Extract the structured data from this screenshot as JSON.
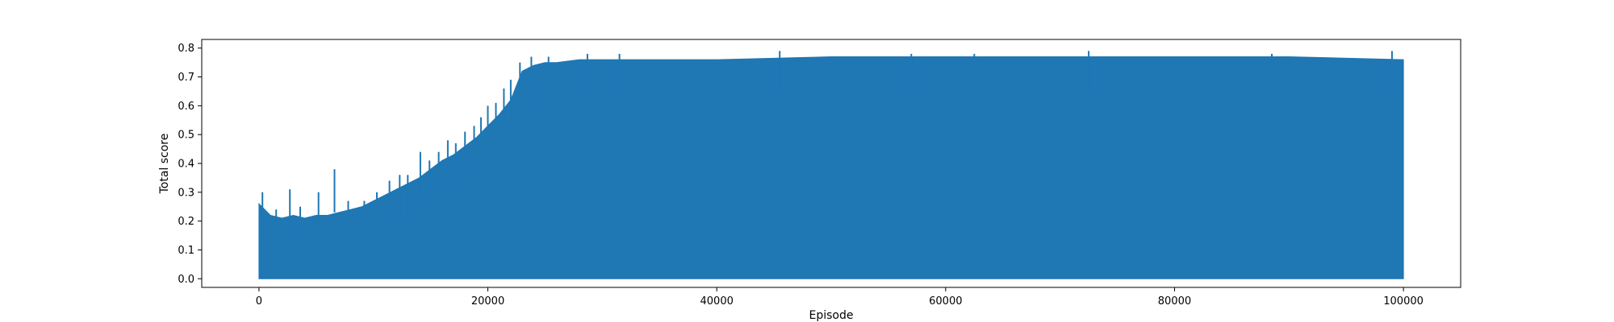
{
  "chart_data": {
    "type": "line",
    "xlabel": "Episode",
    "ylabel": "Total score",
    "xlim": [
      -5000,
      105000
    ],
    "ylim": [
      -0.03,
      0.83
    ],
    "x_ticks": [
      0,
      20000,
      40000,
      60000,
      80000,
      100000
    ],
    "x_tick_labels": [
      "0",
      "20000",
      "40000",
      "60000",
      "80000",
      "100000"
    ],
    "y_ticks": [
      0.0,
      0.1,
      0.2,
      0.3,
      0.4,
      0.5,
      0.6,
      0.7,
      0.8
    ],
    "y_tick_labels": [
      "0.0",
      "0.1",
      "0.2",
      "0.3",
      "0.4",
      "0.5",
      "0.6",
      "0.7",
      "0.8"
    ],
    "grid": false,
    "series": [
      {
        "color": "#1f77b4",
        "x": [
          0,
          1000,
          2000,
          3000,
          4000,
          5000,
          6000,
          7000,
          8000,
          9000,
          10000,
          11000,
          12000,
          13000,
          14000,
          15000,
          16000,
          17000,
          18000,
          19000,
          20000,
          21000,
          22000,
          23000,
          24000,
          25000,
          26000,
          28000,
          30000,
          35000,
          40000,
          50000,
          60000,
          70000,
          80000,
          90000,
          100000
        ],
        "upper": [
          0.26,
          0.22,
          0.21,
          0.22,
          0.21,
          0.22,
          0.22,
          0.23,
          0.24,
          0.25,
          0.27,
          0.29,
          0.31,
          0.33,
          0.35,
          0.38,
          0.41,
          0.43,
          0.46,
          0.49,
          0.53,
          0.57,
          0.62,
          0.72,
          0.74,
          0.75,
          0.75,
          0.76,
          0.76,
          0.76,
          0.76,
          0.77,
          0.77,
          0.77,
          0.77,
          0.77,
          0.76
        ],
        "lower": [
          0.0,
          0.0,
          0.0,
          0.0,
          0.0,
          0.0,
          0.0,
          0.0,
          0.0,
          0.0,
          0.0,
          0.0,
          0.0,
          0.0,
          0.0,
          0.0,
          0.0,
          0.0,
          0.0,
          0.0,
          0.0,
          0.0,
          0.0,
          0.0,
          0.0,
          0.0,
          0.0,
          0.0,
          0.0,
          0.0,
          0.0,
          0.0,
          0.0,
          0.0,
          0.0,
          0.0,
          0.0
        ],
        "spikes": [
          [
            300,
            0.3
          ],
          [
            1500,
            0.24
          ],
          [
            2700,
            0.31
          ],
          [
            3600,
            0.25
          ],
          [
            5200,
            0.3
          ],
          [
            6600,
            0.38
          ],
          [
            7800,
            0.27
          ],
          [
            9200,
            0.27
          ],
          [
            10300,
            0.3
          ],
          [
            11400,
            0.34
          ],
          [
            12300,
            0.36
          ],
          [
            13000,
            0.36
          ],
          [
            14100,
            0.44
          ],
          [
            14900,
            0.41
          ],
          [
            15700,
            0.44
          ],
          [
            16500,
            0.48
          ],
          [
            17200,
            0.47
          ],
          [
            18000,
            0.51
          ],
          [
            18800,
            0.53
          ],
          [
            19400,
            0.56
          ],
          [
            20000,
            0.6
          ],
          [
            20700,
            0.61
          ],
          [
            21400,
            0.66
          ],
          [
            22000,
            0.69
          ],
          [
            22800,
            0.75
          ],
          [
            23800,
            0.77
          ],
          [
            25300,
            0.77
          ],
          [
            28700,
            0.78
          ],
          [
            31500,
            0.78
          ],
          [
            45500,
            0.79
          ],
          [
            57000,
            0.78
          ],
          [
            62500,
            0.78
          ],
          [
            72500,
            0.79
          ],
          [
            88500,
            0.78
          ],
          [
            99000,
            0.79
          ]
        ]
      }
    ]
  }
}
